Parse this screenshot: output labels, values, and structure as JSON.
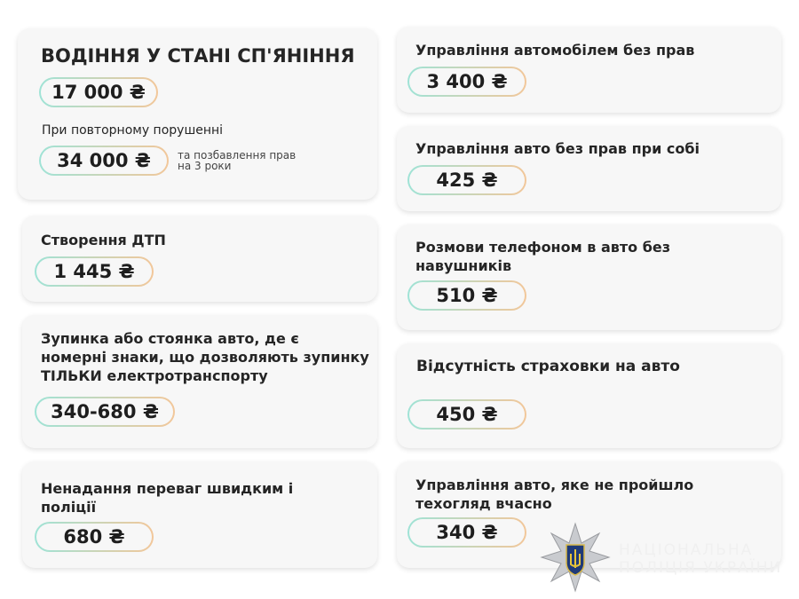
{
  "left": [
    {
      "title": "ВОДІННЯ У СТАНІ СП'ЯНІННЯ",
      "fine": "17 000 ₴",
      "repeat_label": "При повторному порушенні",
      "repeat_fine": "34 000 ₴",
      "repeat_note": "та позбавлення прав на 3 роки"
    },
    {
      "title": "Створення ДТП",
      "fine": "1 445 ₴"
    },
    {
      "title": "Зупинка або стоянка авто, де є номерні знаки, що дозволяють зупинку ТІЛЬКИ електротранспорту",
      "fine": "340-680 ₴"
    },
    {
      "title": "Ненадання переваг швидким і поліції",
      "fine": "680 ₴"
    }
  ],
  "right": [
    {
      "title": "Управління автомобілем без прав",
      "fine": "3 400 ₴"
    },
    {
      "title": "Управління авто без прав при собі",
      "fine": "425 ₴"
    },
    {
      "title": "Розмови телефоном в авто без навушників",
      "fine": "510 ₴"
    },
    {
      "title": "Відсутність страховки на авто",
      "fine": "450 ₴"
    },
    {
      "title": "Управління авто, яке не пройшло техогляд вчасно",
      "fine": "340 ₴"
    }
  ],
  "logo": {
    "text": "НАЦІОНАЛЬНА ПОЛІЦІЯ УКРАЇНИ",
    "line1": "НАЦІОНАЛЬНА",
    "line2": "ПОЛІЦІЯ УКРАЇНИ"
  },
  "colors": {
    "pill_start": "#9fe3d6",
    "pill_end": "#f2c79a",
    "card": "#f7f7f7"
  }
}
